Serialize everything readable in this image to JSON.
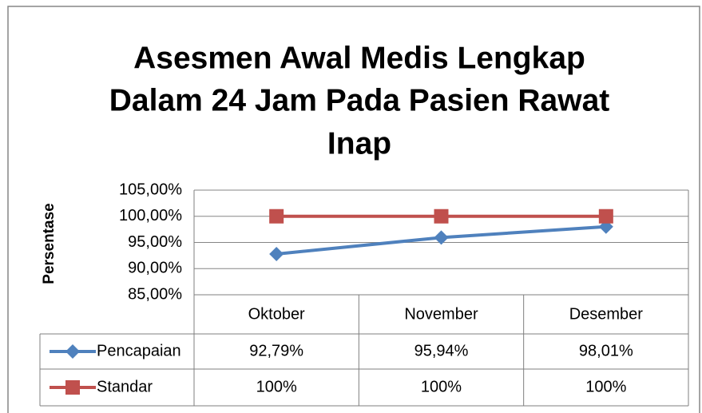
{
  "chart_data": {
    "type": "line",
    "title": [
      "Asesmen Awal Medis Lengkap",
      "Dalam 24 Jam Pada Pasien Rawat",
      "Inap"
    ],
    "y_label": "Persentase",
    "categories": [
      "Oktober",
      "November",
      "Desember"
    ],
    "series": [
      {
        "name": "Pencapaian",
        "color": "#4f81bd",
        "marker": "diamond",
        "values": [
          92.79,
          95.94,
          98.01
        ],
        "value_labels": [
          "92,79%",
          "95,94%",
          "98,01%"
        ]
      },
      {
        "name": "Standar",
        "color": "#c0504d",
        "marker": "square",
        "values": [
          100,
          100,
          100
        ],
        "value_labels": [
          "100%",
          "100%",
          "100%"
        ]
      }
    ],
    "ylim": [
      85,
      105
    ],
    "yticks": [
      {
        "value": 85,
        "label": "85,00%"
      },
      {
        "value": 90,
        "label": "90,00%"
      },
      {
        "value": 95,
        "label": "95,00%"
      },
      {
        "value": 100,
        "label": "100,00%"
      },
      {
        "value": 105,
        "label": "105,00%"
      }
    ],
    "grid": true,
    "data_table": true
  }
}
